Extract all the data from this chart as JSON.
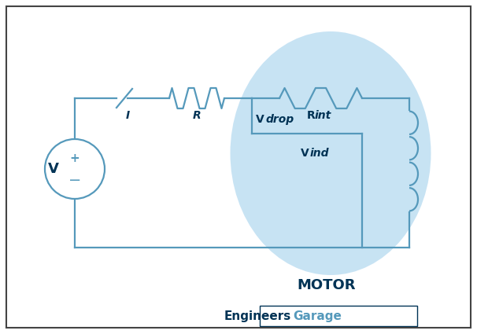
{
  "bg_color": "#ffffff",
  "circuit_color": "#5599bb",
  "dark_text_color": "#003355",
  "motor_fill": "#aad4ee",
  "line_width": 1.6,
  "watermark_engineers": "Engineers",
  "watermark_garage": "Garage",
  "label_V": "V",
  "label_I": "I",
  "label_R": "R",
  "label_MOTOR": "MOTOR",
  "font_size_labels": 10,
  "font_size_watermark": 11,
  "font_size_motor": 11,
  "font_size_V": 13
}
